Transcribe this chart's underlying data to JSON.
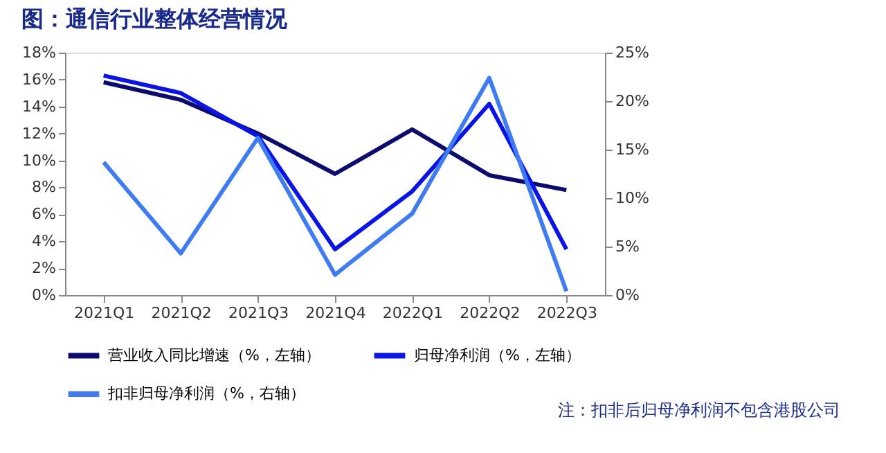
{
  "chart_data": {
    "type": "line",
    "title": "图：通信行业整体经营情况",
    "categories": [
      "2021Q1",
      "2021Q2",
      "2021Q3",
      "2021Q4",
      "2022Q1",
      "2022Q2",
      "2022Q3"
    ],
    "series": [
      {
        "name": "营业收入同比增速（%，左轴）",
        "color": "#0c0c6e",
        "values": [
          15.8,
          14.5,
          12.0,
          9.0,
          12.3,
          8.9,
          7.8
        ]
      },
      {
        "name": "归母净利润（%，左轴）",
        "color": "#0a14e6",
        "values": [
          16.3,
          15.0,
          11.8,
          3.4,
          7.7,
          14.2,
          3.4
        ]
      },
      {
        "name": "扣非归母净利润（%，右轴）",
        "color": "#3f7cf2",
        "axis": "y2",
        "values": [
          13.7,
          4.3,
          16.2,
          2.1,
          8.4,
          22.4,
          0.4
        ]
      }
    ],
    "ylim": [
      0,
      18
    ],
    "yticks": [
      {
        "value": 0,
        "label": "0%"
      },
      {
        "value": 2,
        "label": "2%"
      },
      {
        "value": 4,
        "label": "4%"
      },
      {
        "value": 6,
        "label": "6%"
      },
      {
        "value": 8,
        "label": "8%"
      },
      {
        "value": 10,
        "label": "10%"
      },
      {
        "value": 12,
        "label": "12%"
      },
      {
        "value": 14,
        "label": "14%"
      },
      {
        "value": 16,
        "label": "16%"
      },
      {
        "value": 18,
        "label": "18%"
      }
    ],
    "y2lim": [
      0,
      25
    ],
    "y2ticks": [
      {
        "value": 0,
        "label": "0%"
      },
      {
        "value": 5,
        "label": "5%"
      },
      {
        "value": 10,
        "label": "10%"
      },
      {
        "value": 15,
        "label": "15%"
      },
      {
        "value": 20,
        "label": "20%"
      },
      {
        "value": 25,
        "label": "25%"
      }
    ],
    "grid": false,
    "legend": "bottom",
    "marker": "none",
    "line_style": "solid",
    "annotations": [
      "注：扣非后归母净利润不包含港股公司"
    ]
  }
}
